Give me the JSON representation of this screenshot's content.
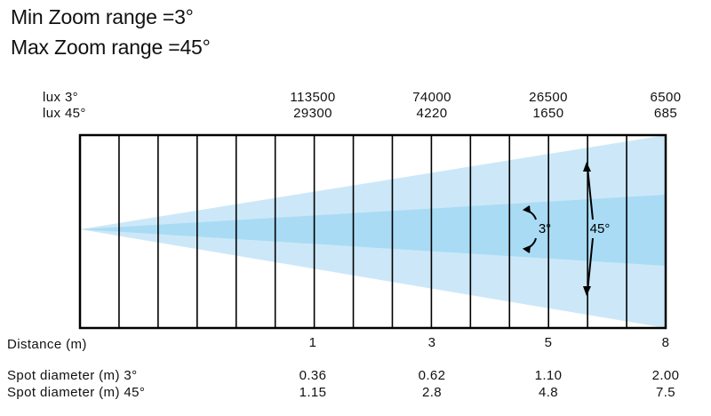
{
  "titles": {
    "min_zoom": "Min Zoom range =3°",
    "max_zoom": "Max Zoom range =45°"
  },
  "row_labels": {
    "lux_3": "lux 3°",
    "lux_45": "lux 45°",
    "distance": "Distance (m)",
    "spot_3": "Spot diameter (m) 3°",
    "spot_45": "Spot diameter (m) 45°"
  },
  "measurements": [
    {
      "distance": "1",
      "lux_3": "113500",
      "lux_45": "29300",
      "spot_3": "0.36",
      "spot_45": "1.15"
    },
    {
      "distance": "3",
      "lux_3": "74000",
      "lux_45": "4220",
      "spot_3": "0.62",
      "spot_45": "2.8"
    },
    {
      "distance": "5",
      "lux_3": "26500",
      "lux_45": "1650",
      "spot_3": "1.10",
      "spot_45": "4.8"
    },
    {
      "distance": "8",
      "lux_3": "6500",
      "lux_45": "685",
      "spot_3": "2.00",
      "spot_45": "7.5"
    }
  ],
  "angle_labels": {
    "narrow": "3°",
    "wide": "45°"
  },
  "grid": {
    "columns": 15
  },
  "colors": {
    "beam_wide": "#cce8f8",
    "beam_narrow": "#a9dbf4",
    "grid_line": "#000000"
  }
}
